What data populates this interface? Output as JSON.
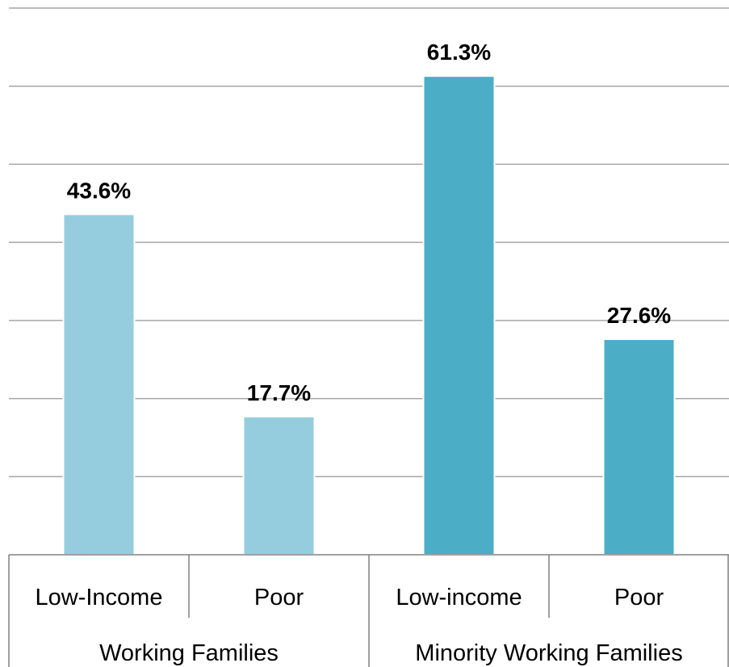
{
  "chart_data": {
    "type": "bar",
    "title": "",
    "xlabel": "",
    "ylabel": "",
    "ylim": [
      0,
      70
    ],
    "grid": true,
    "legend": "none",
    "value_format": "percent-1dp",
    "groups": [
      {
        "label": "Working Families",
        "color": "#95cddf",
        "categories": [
          {
            "label": "Low-Income",
            "value": 43.6,
            "display": "43.6%"
          },
          {
            "label": "Poor",
            "value": 17.7,
            "display": "17.7%"
          }
        ]
      },
      {
        "label": "Minority Working Families",
        "color": "#4badc6",
        "categories": [
          {
            "label": "Low-income",
            "value": 61.3,
            "display": "61.3%"
          },
          {
            "label": "Poor",
            "value": 27.6,
            "display": "27.6%"
          }
        ]
      }
    ]
  }
}
